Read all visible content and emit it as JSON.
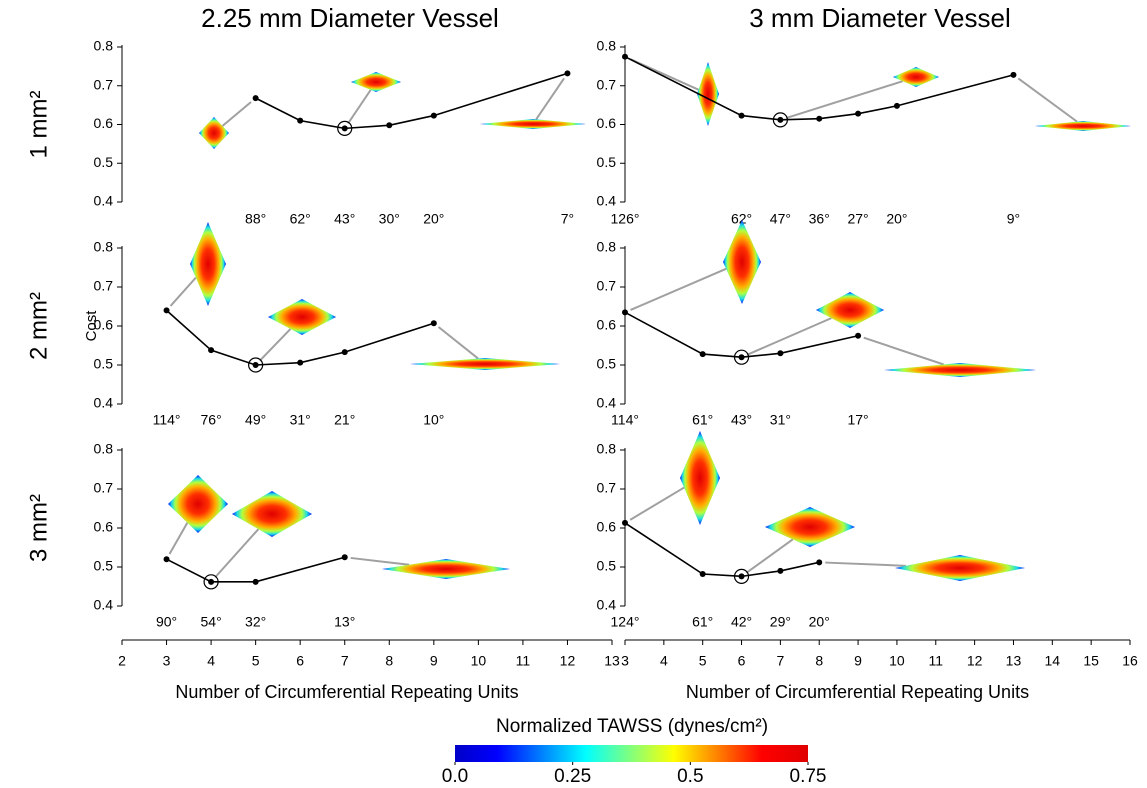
{
  "column_titles": [
    "2.25 mm Diameter Vessel",
    "3 mm Diameter Vessel"
  ],
  "row_labels": [
    "1 mm²",
    "2 mm²",
    "3 mm²"
  ],
  "colorbar": {
    "title": "Normalized TAWSS (dynes/cm²)",
    "lim": [
      0,
      0.75
    ],
    "ticks": [
      {
        "value": 0,
        "label": "0.0"
      },
      0.25,
      0.5,
      0.75
    ]
  },
  "chart_data": [
    {
      "type": "line",
      "color": "#000000",
      "x": [
        5,
        6,
        7,
        8,
        9,
        12
      ],
      "values": [
        0.668,
        0.61,
        0.59,
        0.598,
        0.623,
        0.732
      ],
      "point_labels": [
        "88°",
        "62°",
        "43°",
        "30°",
        "20°",
        "7°"
      ],
      "circled_x": 7,
      "xlim": [
        2,
        13
      ],
      "ylim": [
        0.4,
        0.8
      ],
      "yticks": [
        0.4,
        0.5,
        0.6,
        0.7,
        0.8
      ]
    },
    {
      "type": "line",
      "color": "#000000",
      "x": [
        3,
        6,
        7,
        8,
        9,
        10,
        13
      ],
      "values": [
        0.775,
        0.623,
        0.612,
        0.615,
        0.628,
        0.648,
        0.728
      ],
      "point_labels": [
        "126°",
        "62°",
        "47°",
        "36°",
        "27°",
        "20°",
        "9°"
      ],
      "circled_x": 7,
      "xlim": [
        3,
        16
      ],
      "ylim": [
        0.4,
        0.8
      ],
      "yticks": [
        0.4,
        0.5,
        0.6,
        0.7,
        0.8
      ]
    },
    {
      "type": "line",
      "color": "#000000",
      "x": [
        3,
        4,
        5,
        6,
        7,
        9
      ],
      "values": [
        0.64,
        0.538,
        0.5,
        0.506,
        0.533,
        0.607
      ],
      "point_labels": [
        "114°",
        "76°",
        "49°",
        "31°",
        "21°",
        "10°"
      ],
      "circled_x": 5,
      "xlim": [
        2,
        13
      ],
      "ylim": [
        0.4,
        0.8
      ],
      "yticks": [
        0.4,
        0.5,
        0.6,
        0.7,
        0.8
      ],
      "y_label": "Cost"
    },
    {
      "type": "line",
      "color": "#000000",
      "x": [
        3,
        5,
        6,
        7,
        9
      ],
      "values": [
        0.635,
        0.528,
        0.52,
        0.53,
        0.575
      ],
      "point_labels": [
        "114°",
        "61°",
        "43°",
        "31°",
        "17°"
      ],
      "circled_x": 6,
      "xlim": [
        3,
        16
      ],
      "ylim": [
        0.4,
        0.8
      ],
      "yticks": [
        0.4,
        0.5,
        0.6,
        0.7,
        0.8
      ]
    },
    {
      "type": "line",
      "color": "#000000",
      "x": [
        3,
        4,
        5,
        7
      ],
      "values": [
        0.52,
        0.462,
        0.462,
        0.525
      ],
      "point_labels": [
        "90°",
        "54°",
        "32°",
        "13°"
      ],
      "circled_x": 4,
      "xlim": [
        2,
        13
      ],
      "ylim": [
        0.4,
        0.8
      ],
      "yticks": [
        0.4,
        0.5,
        0.6,
        0.7,
        0.8
      ],
      "xticks": [
        2,
        3,
        4,
        5,
        6,
        7,
        8,
        9,
        10,
        11,
        12,
        13
      ],
      "x_label": "Number of Circumferential Repeating Units"
    },
    {
      "type": "line",
      "color": "#000000",
      "x": [
        3,
        5,
        6,
        7,
        8
      ],
      "values": [
        0.613,
        0.482,
        0.476,
        0.49,
        0.512
      ],
      "point_labels": [
        "124°",
        "61°",
        "42°",
        "29°",
        "20°"
      ],
      "circled_x": 6,
      "xlim": [
        3,
        16
      ],
      "ylim": [
        0.4,
        0.8
      ],
      "yticks": [
        0.4,
        0.5,
        0.6,
        0.7,
        0.8
      ],
      "xticks": [
        3,
        4,
        5,
        6,
        7,
        8,
        9,
        10,
        11,
        12,
        13,
        14,
        15,
        16
      ],
      "x_label": "Number of Circumferential Repeating Units"
    }
  ]
}
